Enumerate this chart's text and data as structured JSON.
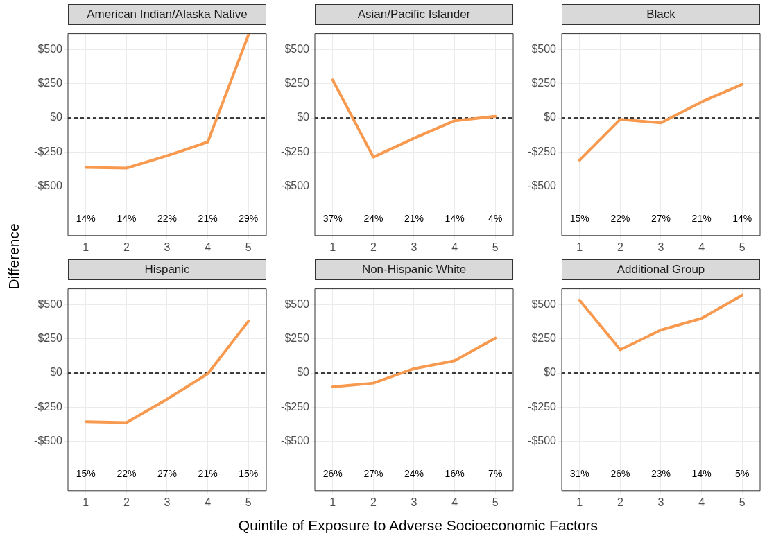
{
  "chart_data": [
    {
      "type": "line",
      "title": "American Indian/Alaska Native",
      "ylabel": "Difference",
      "x": [
        1,
        2,
        3,
        4,
        5
      ],
      "series": [
        {
          "color": "#f79a50",
          "values": [
            -362,
            -367,
            -277,
            -176,
            606
          ]
        }
      ],
      "xlim": [
        0.56,
        5.44
      ],
      "xticks": [
        1,
        2,
        3,
        4,
        5
      ],
      "ylim": [
        -860,
        615
      ],
      "yticks": [
        {
          "value": -500,
          "label": "-$500"
        },
        {
          "value": -250,
          "label": "-$250"
        },
        {
          "value": 0,
          "label": "$0"
        },
        {
          "value": 250,
          "label": "$250"
        },
        {
          "value": 500,
          "label": "$500"
        }
      ],
      "grid": true,
      "legend": false,
      "marker": "none",
      "line_style": "solid",
      "ref_lines": [
        {
          "axis": "y",
          "value": 0,
          "color": "#000000",
          "line_style": "dashed"
        }
      ],
      "annotations": [
        "14%",
        "14%",
        "22%",
        "21%",
        "29%"
      ]
    },
    {
      "type": "line",
      "title": "Asian/Pacific Islander",
      "x": [
        1,
        2,
        3,
        4,
        5
      ],
      "series": [
        {
          "color": "#f79a50",
          "values": [
            277,
            -287,
            -149,
            -21,
            11
          ]
        }
      ],
      "xlim": [
        0.56,
        5.44
      ],
      "xticks": [
        1,
        2,
        3,
        4,
        5
      ],
      "ylim": [
        -860,
        615
      ],
      "yticks": [
        {
          "value": -500,
          "label": "-$500"
        },
        {
          "value": -250,
          "label": "-$250"
        },
        {
          "value": 0,
          "label": "$0"
        },
        {
          "value": 250,
          "label": "$250"
        },
        {
          "value": 500,
          "label": "$500"
        }
      ],
      "grid": true,
      "legend": false,
      "marker": "none",
      "line_style": "solid",
      "ref_lines": [
        {
          "axis": "y",
          "value": 0,
          "color": "#000000",
          "line_style": "dashed"
        }
      ],
      "annotations": [
        "37%",
        "24%",
        "21%",
        "14%",
        "4%"
      ]
    },
    {
      "type": "line",
      "title": "Black",
      "x": [
        1,
        2,
        3,
        4,
        5
      ],
      "series": [
        {
          "color": "#f79a50",
          "values": [
            -309,
            -11,
            -37,
            117,
            245
          ]
        }
      ],
      "xlim": [
        0.56,
        5.44
      ],
      "xticks": [
        1,
        2,
        3,
        4,
        5
      ],
      "ylim": [
        -860,
        615
      ],
      "yticks": [
        {
          "value": -500,
          "label": "-$500"
        },
        {
          "value": -250,
          "label": "-$250"
        },
        {
          "value": 0,
          "label": "$0"
        },
        {
          "value": 250,
          "label": "$250"
        },
        {
          "value": 500,
          "label": "$500"
        }
      ],
      "grid": true,
      "legend": false,
      "marker": "none",
      "line_style": "solid",
      "ref_lines": [
        {
          "axis": "y",
          "value": 0,
          "color": "#000000",
          "line_style": "dashed"
        }
      ],
      "annotations": [
        "15%",
        "22%",
        "27%",
        "21%",
        "14%"
      ]
    },
    {
      "type": "line",
      "title": "Hispanic",
      "x": [
        1,
        2,
        3,
        4,
        5
      ],
      "series": [
        {
          "color": "#f79a50",
          "values": [
            -356,
            -362,
            -191,
            -5,
            378
          ]
        }
      ],
      "xlim": [
        0.56,
        5.44
      ],
      "xticks": [
        1,
        2,
        3,
        4,
        5
      ],
      "ylim": [
        -860,
        615
      ],
      "yticks": [
        {
          "value": -500,
          "label": "-$500"
        },
        {
          "value": -250,
          "label": "-$250"
        },
        {
          "value": 0,
          "label": "$0"
        },
        {
          "value": 250,
          "label": "$250"
        },
        {
          "value": 500,
          "label": "$500"
        }
      ],
      "grid": true,
      "legend": false,
      "marker": "none",
      "line_style": "solid",
      "ref_lines": [
        {
          "axis": "y",
          "value": 0,
          "color": "#000000",
          "line_style": "dashed"
        }
      ],
      "annotations": [
        "15%",
        "22%",
        "27%",
        "21%",
        "15%"
      ]
    },
    {
      "type": "line",
      "title": "Non-Hispanic White",
      "xlabel": "Quintile of Exposure to Adverse Socioeconomic Factors",
      "x": [
        1,
        2,
        3,
        4,
        5
      ],
      "series": [
        {
          "color": "#f79a50",
          "values": [
            -101,
            -74,
            32,
            90,
            255
          ]
        }
      ],
      "xlim": [
        0.56,
        5.44
      ],
      "xticks": [
        1,
        2,
        3,
        4,
        5
      ],
      "ylim": [
        -860,
        615
      ],
      "yticks": [
        {
          "value": -500,
          "label": "-$500"
        },
        {
          "value": -250,
          "label": "-$250"
        },
        {
          "value": 0,
          "label": "$0"
        },
        {
          "value": 250,
          "label": "$250"
        },
        {
          "value": 500,
          "label": "$500"
        }
      ],
      "grid": true,
      "legend": false,
      "marker": "none",
      "line_style": "solid",
      "ref_lines": [
        {
          "axis": "y",
          "value": 0,
          "color": "#000000",
          "line_style": "dashed"
        }
      ],
      "annotations": [
        "26%",
        "27%",
        "24%",
        "16%",
        "7%"
      ]
    },
    {
      "type": "line",
      "title": "Additional Group",
      "x": [
        1,
        2,
        3,
        4,
        5
      ],
      "series": [
        {
          "color": "#f79a50",
          "values": [
            532,
            170,
            314,
            399,
            569
          ]
        }
      ],
      "xlim": [
        0.56,
        5.44
      ],
      "xticks": [
        1,
        2,
        3,
        4,
        5
      ],
      "ylim": [
        -860,
        615
      ],
      "yticks": [
        {
          "value": -500,
          "label": "-$500"
        },
        {
          "value": -250,
          "label": "-$250"
        },
        {
          "value": 0,
          "label": "$0"
        },
        {
          "value": 250,
          "label": "$250"
        },
        {
          "value": 500,
          "label": "$500"
        }
      ],
      "grid": true,
      "legend": false,
      "marker": "none",
      "line_style": "solid",
      "ref_lines": [
        {
          "axis": "y",
          "value": 0,
          "color": "#000000",
          "line_style": "dashed"
        }
      ],
      "annotations": [
        "31%",
        "26%",
        "23%",
        "14%",
        "5%"
      ]
    }
  ]
}
